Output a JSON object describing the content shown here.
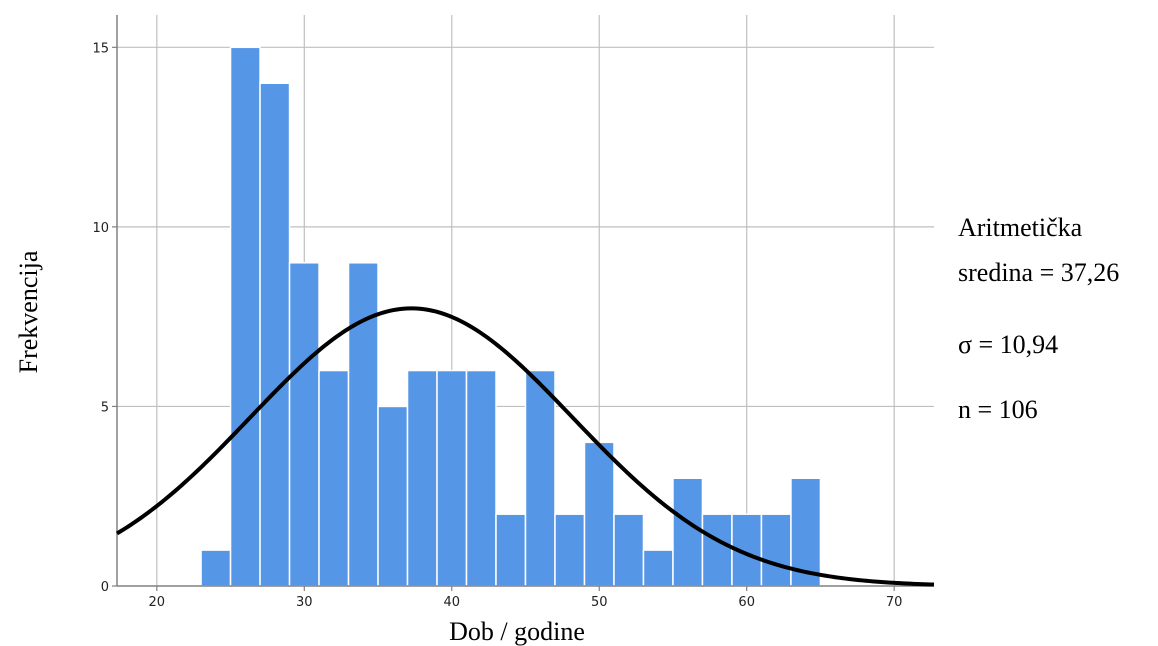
{
  "chart_data": {
    "type": "bar",
    "subtype": "histogram",
    "xlabel": "Dob / godine",
    "ylabel": "Frekvencija",
    "xlim": [
      17.3,
      72.7
    ],
    "ylim": [
      0,
      15.9
    ],
    "x_ticks": [
      20,
      30,
      40,
      50,
      60,
      70
    ],
    "y_ticks": [
      0,
      5,
      10,
      15
    ],
    "bin_width": 2,
    "bins": [
      {
        "start": 23,
        "end": 25,
        "value": 1
      },
      {
        "start": 25,
        "end": 27,
        "value": 15
      },
      {
        "start": 27,
        "end": 29,
        "value": 14
      },
      {
        "start": 29,
        "end": 31,
        "value": 9
      },
      {
        "start": 31,
        "end": 33,
        "value": 6
      },
      {
        "start": 33,
        "end": 35,
        "value": 9
      },
      {
        "start": 35,
        "end": 37,
        "value": 5
      },
      {
        "start": 37,
        "end": 39,
        "value": 6
      },
      {
        "start": 39,
        "end": 41,
        "value": 6
      },
      {
        "start": 41,
        "end": 43,
        "value": 6
      },
      {
        "start": 43,
        "end": 45,
        "value": 2
      },
      {
        "start": 45,
        "end": 47,
        "value": 6
      },
      {
        "start": 47,
        "end": 49,
        "value": 2
      },
      {
        "start": 49,
        "end": 51,
        "value": 4
      },
      {
        "start": 51,
        "end": 53,
        "value": 2
      },
      {
        "start": 53,
        "end": 55,
        "value": 1
      },
      {
        "start": 55,
        "end": 57,
        "value": 3
      },
      {
        "start": 57,
        "end": 59,
        "value": 2
      },
      {
        "start": 59,
        "end": 61,
        "value": 2
      },
      {
        "start": 61,
        "end": 63,
        "value": 2
      },
      {
        "start": 63,
        "end": 65,
        "value": 3
      }
    ],
    "normal_curve": {
      "mean": 37.26,
      "sd": 10.94,
      "n": 106
    },
    "grid": true,
    "colors": {
      "bar": "#5596e6",
      "bar_edge": "#ffffff",
      "curve": "#000000",
      "grid": "#bfbfbf",
      "axis": "#808080"
    },
    "stats": {
      "mean_line1": "Aritmetička",
      "mean_line2": "sredina = 37,26",
      "sd": "σ = 10,94",
      "n": "n = 106"
    }
  }
}
